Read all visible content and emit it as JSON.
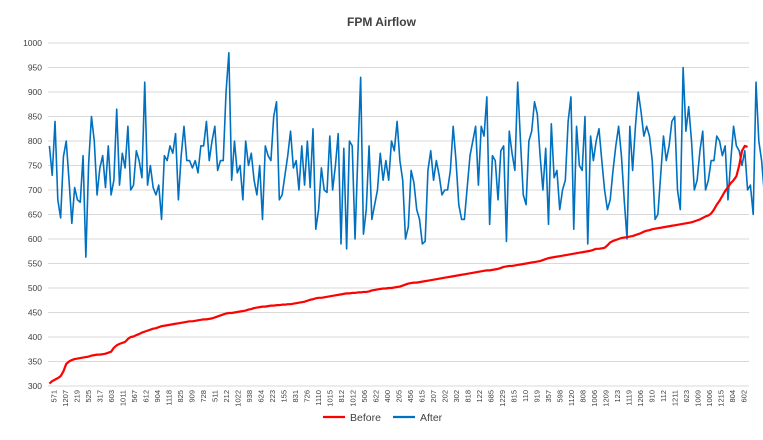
{
  "chart_data": {
    "type": "line",
    "title": "FPM Airflow",
    "xlabel": "",
    "ylabel": "",
    "ylim": [
      300,
      1000
    ],
    "yticks": [
      300,
      350,
      400,
      450,
      500,
      550,
      600,
      650,
      700,
      750,
      800,
      850,
      900,
      950,
      1000
    ],
    "grid": "horizontal",
    "legend_position": "bottom",
    "x_tick_labels": [
      "571",
      "1207",
      "219",
      "525",
      "317",
      "603",
      "1011",
      "567",
      "612",
      "904",
      "1118",
      "825",
      "909",
      "728",
      "511",
      "212",
      "1022",
      "938",
      "624",
      "223",
      "155",
      "831",
      "726",
      "1110",
      "1015",
      "812",
      "1012",
      "506",
      "622",
      "400",
      "205",
      "456",
      "615",
      "207",
      "202",
      "302",
      "818",
      "122",
      "685",
      "1229",
      "815",
      "110",
      "919",
      "357",
      "598",
      "1120",
      "808",
      "1006",
      "1209",
      "123",
      "1119",
      "1206",
      "910",
      "112",
      "1211",
      "623",
      "1009",
      "1006",
      "1215",
      "804",
      "602"
    ],
    "series": [
      {
        "name": "Before",
        "color": "#ff0000",
        "values": [
          305,
          310,
          313,
          316,
          320,
          330,
          345,
          350,
          353,
          355,
          356,
          357,
          358,
          359,
          360,
          362,
          363,
          364,
          364,
          365,
          366,
          368,
          370,
          378,
          383,
          386,
          388,
          390,
          396,
          400,
          401,
          404,
          406,
          409,
          411,
          413,
          415,
          417,
          418,
          420,
          422,
          423,
          424,
          425,
          426,
          427,
          428,
          429,
          430,
          431,
          432,
          432,
          433,
          434,
          435,
          436,
          436,
          437,
          438,
          440,
          442,
          444,
          446,
          448,
          449,
          449,
          450,
          451,
          452,
          453,
          454,
          456,
          457,
          459,
          460,
          461,
          462,
          462,
          463,
          464,
          464,
          465,
          465,
          466,
          466,
          467,
          467,
          468,
          469,
          470,
          471,
          472,
          474,
          476,
          477,
          479,
          480,
          480,
          481,
          482,
          483,
          484,
          485,
          486,
          487,
          488,
          489,
          489,
          490,
          490,
          491,
          491,
          492,
          492,
          493,
          495,
          496,
          497,
          498,
          499,
          499,
          500,
          500,
          501,
          502,
          503,
          505,
          507,
          509,
          510,
          511,
          511,
          512,
          513,
          514,
          515,
          516,
          517,
          518,
          519,
          520,
          521,
          522,
          523,
          524,
          525,
          526,
          527,
          528,
          529,
          530,
          531,
          532,
          533,
          534,
          535,
          536,
          536,
          537,
          538,
          539,
          541,
          543,
          544,
          545,
          545,
          546,
          547,
          548,
          549,
          550,
          551,
          552,
          553,
          554,
          555,
          557,
          559,
          561,
          562,
          563,
          564,
          565,
          566,
          567,
          568,
          569,
          570,
          571,
          572,
          573,
          574,
          575,
          576,
          578,
          580,
          580,
          581,
          582,
          587,
          593,
          596,
          598,
          600,
          602,
          603,
          604,
          605,
          606,
          608,
          610,
          612,
          615,
          617,
          618,
          620,
          621,
          622,
          623,
          624,
          625,
          626,
          627,
          628,
          629,
          630,
          631,
          632,
          633,
          634,
          636,
          638,
          640,
          643,
          646,
          648,
          652,
          660,
          670,
          678,
          688,
          698,
          706,
          714,
          720,
          728,
          750,
          780,
          790,
          788
        ],
        "legend_label": "Before"
      },
      {
        "name": "After",
        "color": "#0070c0",
        "values": [
          790,
          730,
          840,
          680,
          643,
          768,
          800,
          720,
          632,
          705,
          680,
          675,
          770,
          563,
          755,
          850,
          800,
          690,
          745,
          770,
          705,
          790,
          690,
          720,
          865,
          710,
          775,
          745,
          830,
          700,
          710,
          780,
          760,
          725,
          920,
          710,
          750,
          705,
          690,
          710,
          640,
          770,
          760,
          790,
          775,
          815,
          680,
          770,
          830,
          760,
          760,
          745,
          760,
          735,
          790,
          790,
          840,
          760,
          800,
          830,
          740,
          760,
          760,
          900,
          980,
          720,
          800,
          735,
          750,
          680,
          800,
          750,
          775,
          720,
          690,
          750,
          640,
          790,
          770,
          760,
          850,
          880,
          680,
          690,
          730,
          770,
          820,
          745,
          760,
          700,
          790,
          710,
          800,
          705,
          825,
          620,
          660,
          745,
          700,
          695,
          810,
          700,
          750,
          815,
          590,
          785,
          580,
          800,
          790,
          600,
          770,
          930,
          610,
          660,
          790,
          640,
          670,
          700,
          775,
          720,
          760,
          720,
          800,
          780,
          840,
          760,
          720,
          600,
          625,
          740,
          715,
          660,
          640,
          590,
          595,
          740,
          780,
          720,
          760,
          730,
          690,
          700,
          700,
          740,
          830,
          760,
          670,
          640,
          640,
          705,
          770,
          800,
          830,
          710,
          830,
          810,
          890,
          630,
          770,
          760,
          680,
          780,
          790,
          595,
          820,
          775,
          740,
          920,
          800,
          690,
          670,
          800,
          820,
          880,
          855,
          770,
          700,
          785,
          630,
          835,
          725,
          740,
          660,
          700,
          720,
          840,
          890,
          620,
          830,
          750,
          740,
          850,
          590,
          810,
          760,
          800,
          825,
          760,
          700,
          660,
          680,
          740,
          790,
          830,
          770,
          680,
          600,
          830,
          740,
          830,
          900,
          860,
          810,
          830,
          810,
          760,
          640,
          650,
          730,
          810,
          760,
          790,
          840,
          850,
          700,
          660,
          950,
          820,
          870,
          800,
          700,
          720,
          780,
          820,
          700,
          720,
          760,
          760,
          810,
          800,
          770,
          790,
          680,
          760,
          830,
          790,
          780,
          750,
          780,
          700,
          710,
          650,
          920,
          800,
          760,
          690,
          720,
          760,
          790,
          780,
          770,
          700,
          730,
          810,
          790,
          760,
          700,
          700,
          820,
          800,
          720,
          780,
          830,
          810,
          760,
          760,
          800,
          760,
          720,
          690,
          680,
          750,
          760,
          700,
          690,
          710,
          930,
          940,
          830,
          820,
          825
        ]
      }
    ]
  }
}
